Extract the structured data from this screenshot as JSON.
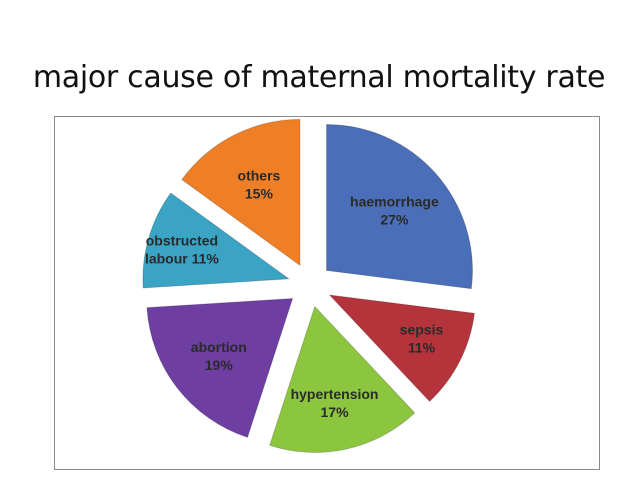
{
  "slide": {
    "title": "major cause of maternal mortality rate"
  },
  "chart_data": {
    "type": "pie",
    "title": "",
    "exploded": true,
    "legend": "none",
    "slices": [
      {
        "name": "haemorrhage",
        "value": 27,
        "label": "haemorrhage",
        "value_label": "27%",
        "color": "#4a6fb8"
      },
      {
        "name": "sepsis",
        "value": 11,
        "label": "sepsis",
        "value_label": "11%",
        "color": "#b5333b"
      },
      {
        "name": "hypertension",
        "value": 17,
        "label": "hypertension",
        "value_label": "17%",
        "color": "#8cc63f"
      },
      {
        "name": "abortion",
        "value": 19,
        "label": "abortion",
        "value_label": "19%",
        "color": "#6e3ea3"
      },
      {
        "name": "obstructed labour",
        "value": 11,
        "label": "obstructed",
        "value_label": "labour 11%",
        "color": "#3ba3c4"
      },
      {
        "name": "others",
        "value": 15,
        "label": "others",
        "value_label": "15%",
        "color": "#ef7f26"
      }
    ]
  }
}
